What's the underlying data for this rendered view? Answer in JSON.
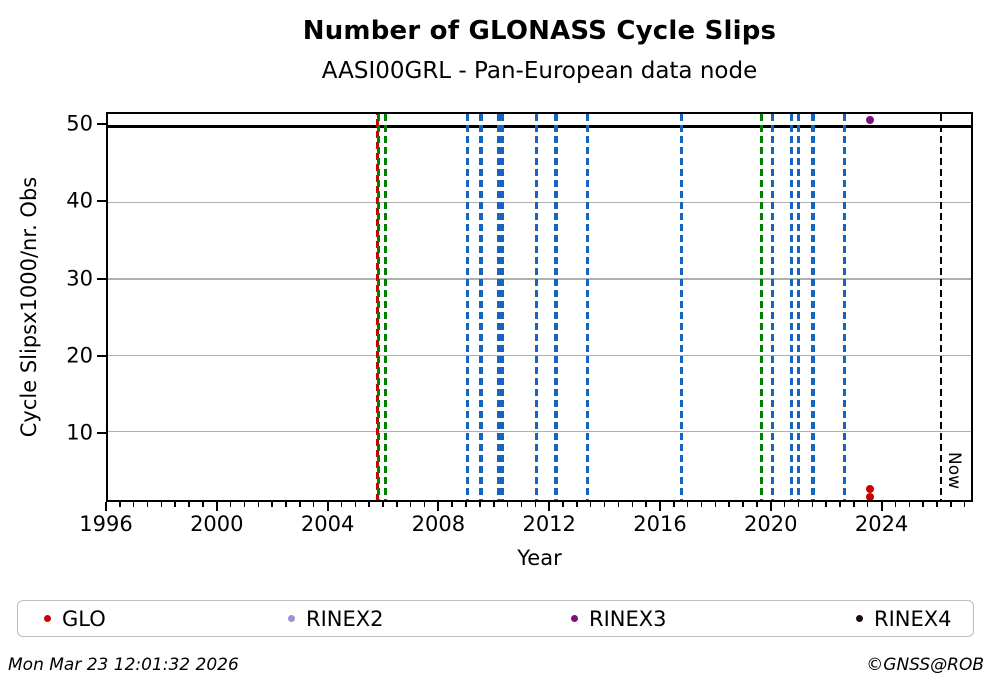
{
  "header": {
    "title": "Number of GLONASS Cycle Slips",
    "subtitle": "AASI00GRL - Pan-European data node"
  },
  "chart_data": {
    "type": "scatter",
    "title": "Number of GLONASS Cycle Slips",
    "subtitle": "AASI00GRL - Pan-European data node",
    "xlabel": "Year",
    "ylabel": "Cycle Slipsx1000/nr. Obs",
    "xlim": [
      1996,
      2027.3
    ],
    "ylim": [
      1.05,
      51.6
    ],
    "grid": "horizontal",
    "grid_color": "#b0b0b0",
    "x_ticks": [
      {
        "value": 1996,
        "label": "1996"
      },
      {
        "value": 2000,
        "label": "2000"
      },
      {
        "value": 2004,
        "label": "2004"
      },
      {
        "value": 2008,
        "label": "2008"
      },
      {
        "value": 2012,
        "label": "2012"
      },
      {
        "value": 2016,
        "label": "2016"
      },
      {
        "value": 2020,
        "label": "2020"
      },
      {
        "value": 2024,
        "label": "2024"
      }
    ],
    "x_minor_tick_step": 0.5,
    "y_ticks": [
      {
        "value": 10,
        "label": "10"
      },
      {
        "value": 20,
        "label": "20"
      },
      {
        "value": 30,
        "label": "30"
      },
      {
        "value": 40,
        "label": "40"
      },
      {
        "value": 50,
        "label": "50"
      }
    ],
    "hline": {
      "y": 50,
      "color": "#000000"
    },
    "vlines": [
      {
        "x": 2005.78,
        "color": "#cc0000",
        "dash_phase": 6
      },
      {
        "x": 2005.82,
        "color": "#008000"
      },
      {
        "x": 2006.07,
        "color": "#008000"
      },
      {
        "x": 2009.05,
        "color": "#1565c0"
      },
      {
        "x": 2009.53,
        "color": "#1565c0"
      },
      {
        "x": 2010.18,
        "color": "#1565c0"
      },
      {
        "x": 2010.32,
        "color": "#1565c0"
      },
      {
        "x": 2011.55,
        "color": "#1565c0"
      },
      {
        "x": 2012.25,
        "color": "#1565c0"
      },
      {
        "x": 2013.4,
        "color": "#1565c0"
      },
      {
        "x": 2016.8,
        "color": "#1565c0"
      },
      {
        "x": 2019.69,
        "color": "#008000"
      },
      {
        "x": 2020.1,
        "color": "#1565c0"
      },
      {
        "x": 2020.78,
        "color": "#1565c0"
      },
      {
        "x": 2021.05,
        "color": "#1565c0"
      },
      {
        "x": 2021.57,
        "color": "#1565c0"
      },
      {
        "x": 2022.7,
        "color": "#1565c0"
      },
      {
        "x": 2026.22,
        "color": "#000000",
        "label": "Now"
      }
    ],
    "series": [
      {
        "name": "GLO",
        "color": "#cc0000",
        "points": [
          {
            "x": 2023.65,
            "y": 2.45
          },
          {
            "x": 2023.65,
            "y": 1.45
          }
        ]
      },
      {
        "name": "RINEX2",
        "color": "#9295d2",
        "points": []
      },
      {
        "name": "RINEX3",
        "color": "#7d107d",
        "points": [
          {
            "x": 2023.65,
            "y": 50.8
          }
        ]
      },
      {
        "name": "RINEX4",
        "color": "#1c0a1c",
        "points": []
      }
    ],
    "legend": {
      "position": "bottom",
      "entries": [
        "GLO",
        "RINEX2",
        "RINEX3",
        "RINEX4"
      ]
    }
  },
  "footer": {
    "timestamp": "Mon Mar 23 12:01:32 2026",
    "credit": "©GNSS@ROB"
  }
}
